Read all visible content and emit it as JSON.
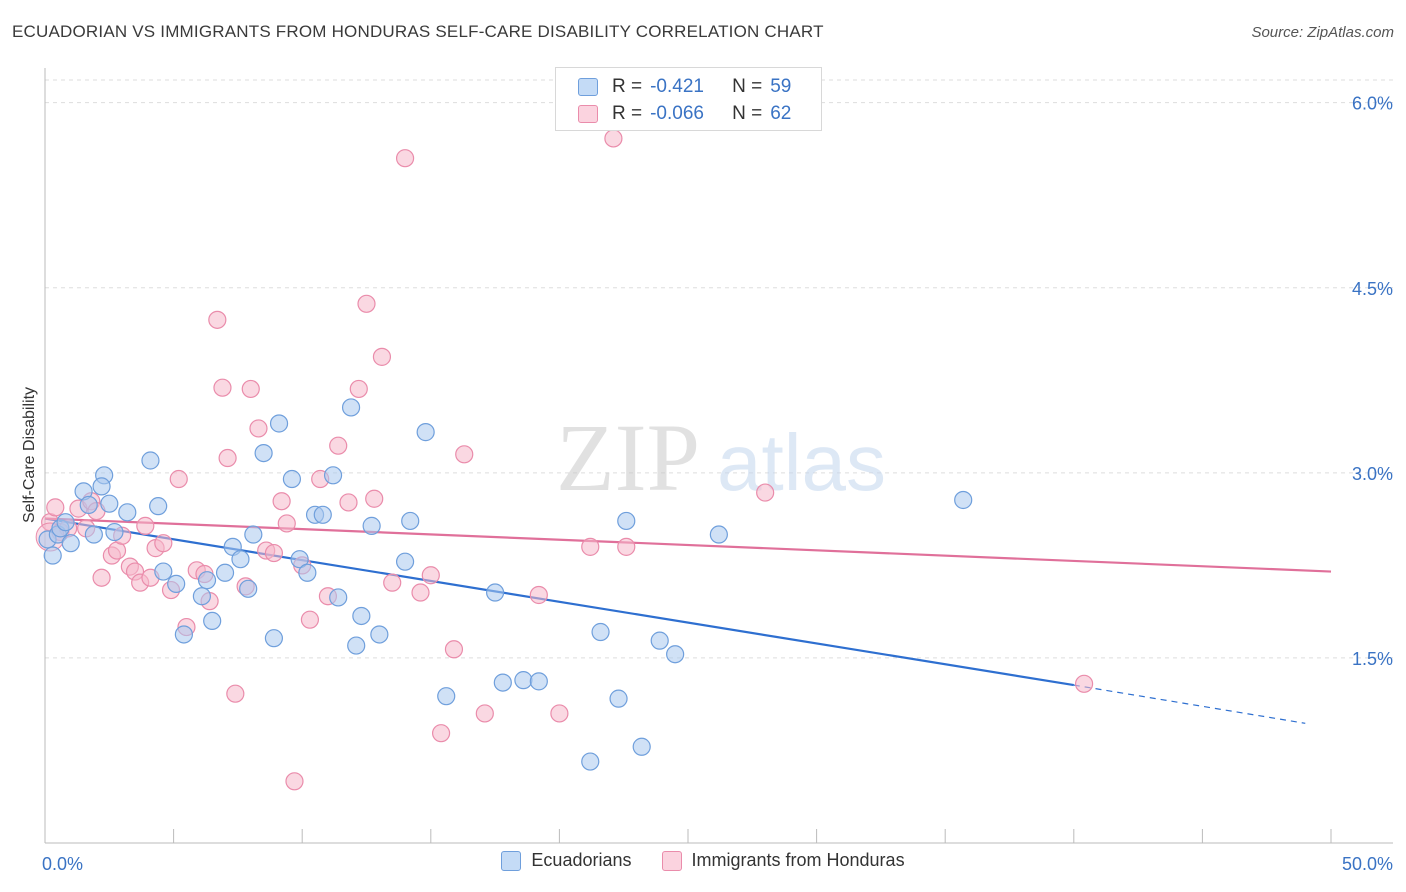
{
  "header": {
    "title": "ECUADORIAN VS IMMIGRANTS FROM HONDURAS SELF-CARE DISABILITY CORRELATION CHART",
    "source": "Source: ZipAtlas.com"
  },
  "watermark": {
    "zip": "ZIP",
    "atlas": "atlas"
  },
  "legend_top": {
    "rows": [
      {
        "r_label": "R =",
        "r_value": "-0.421",
        "n_label": "N =",
        "n_value": "59",
        "color": "#a9c8ef"
      },
      {
        "r_label": "R =",
        "r_value": "-0.066",
        "n_label": "N =",
        "n_value": "62",
        "color": "#f6b8cb"
      }
    ]
  },
  "legend_bottom": {
    "items": [
      {
        "label": "Ecuadorians",
        "color": "#a9c8ef"
      },
      {
        "label": "Immigrants from Honduras",
        "color": "#f6b8cb"
      }
    ]
  },
  "colors": {
    "blue_fill": "#a9c8ef",
    "blue_stroke": "#6f9fdc",
    "blue_line": "#2e6fd0",
    "pink_fill": "#f6b8cb",
    "pink_stroke": "#ea8cab",
    "pink_line": "#e0709a",
    "grid": "#dddddd",
    "axis_label": "#3a73c4"
  },
  "chart_data": {
    "type": "scatter",
    "title": "ECUADORIAN VS IMMIGRANTS FROM HONDURAS SELF-CARE DISABILITY CORRELATION CHART",
    "xlabel": "",
    "ylabel": "Self-Care Disability",
    "xlim": [
      0,
      50
    ],
    "ylim": [
      0,
      6.2
    ],
    "x_tick_labels": [
      "0.0%",
      "50.0%"
    ],
    "y_ticks": [
      1.5,
      3.0,
      4.5,
      6.0
    ],
    "y_tick_labels": [
      "1.5%",
      "3.0%",
      "4.5%",
      "6.0%"
    ],
    "grid": "horizontal dashed",
    "series": [
      {
        "name": "Ecuadorians",
        "r": -0.421,
        "n": 59,
        "trend": {
          "x0": 0.0,
          "y0": 2.63,
          "x1": 40.0,
          "y1": 1.28,
          "dashed_to_x": 49.0,
          "dashed_to_y": 0.97
        },
        "points": [
          [
            0.1,
            2.46
          ],
          [
            0.3,
            2.33
          ],
          [
            0.5,
            2.5
          ],
          [
            0.6,
            2.55
          ],
          [
            0.8,
            2.6
          ],
          [
            1.0,
            2.43
          ],
          [
            1.5,
            2.85
          ],
          [
            1.7,
            2.74
          ],
          [
            1.9,
            2.5
          ],
          [
            2.3,
            2.98
          ],
          [
            2.2,
            2.89
          ],
          [
            2.5,
            2.75
          ],
          [
            3.2,
            2.68
          ],
          [
            2.7,
            2.52
          ],
          [
            4.1,
            3.1
          ],
          [
            4.4,
            2.73
          ],
          [
            4.6,
            2.2
          ],
          [
            5.1,
            2.1
          ],
          [
            5.4,
            1.69
          ],
          [
            6.1,
            2.0
          ],
          [
            6.3,
            2.13
          ],
          [
            6.5,
            1.8
          ],
          [
            7.0,
            2.19
          ],
          [
            7.3,
            2.4
          ],
          [
            7.6,
            2.3
          ],
          [
            7.9,
            2.06
          ],
          [
            8.1,
            2.5
          ],
          [
            8.5,
            3.16
          ],
          [
            8.9,
            1.66
          ],
          [
            9.1,
            3.4
          ],
          [
            9.6,
            2.95
          ],
          [
            9.9,
            2.3
          ],
          [
            10.2,
            2.19
          ],
          [
            10.5,
            2.66
          ],
          [
            10.8,
            2.66
          ],
          [
            11.2,
            2.98
          ],
          [
            11.4,
            1.99
          ],
          [
            11.9,
            3.53
          ],
          [
            12.1,
            1.6
          ],
          [
            12.3,
            1.84
          ],
          [
            12.7,
            2.57
          ],
          [
            13.0,
            1.69
          ],
          [
            14.0,
            2.28
          ],
          [
            14.2,
            2.61
          ],
          [
            14.8,
            3.33
          ],
          [
            15.6,
            1.19
          ],
          [
            17.5,
            2.03
          ],
          [
            17.8,
            1.3
          ],
          [
            18.6,
            1.32
          ],
          [
            19.2,
            1.31
          ],
          [
            21.2,
            0.66
          ],
          [
            21.6,
            1.71
          ],
          [
            22.3,
            1.17
          ],
          [
            22.6,
            2.61
          ],
          [
            23.2,
            0.78
          ],
          [
            23.9,
            1.64
          ],
          [
            24.5,
            1.53
          ],
          [
            26.2,
            2.5
          ],
          [
            35.7,
            2.78
          ]
        ]
      },
      {
        "name": "Immigrants from Honduras",
        "r": -0.066,
        "n": 62,
        "trend": {
          "x0": 0.0,
          "y0": 2.63,
          "x1": 50.0,
          "y1": 2.2
        },
        "points": [
          [
            0.2,
            2.6
          ],
          [
            0.4,
            2.72
          ],
          [
            0.6,
            2.52
          ],
          [
            0.9,
            2.55
          ],
          [
            1.3,
            2.71
          ],
          [
            1.6,
            2.55
          ],
          [
            1.8,
            2.77
          ],
          [
            2.0,
            2.69
          ],
          [
            2.2,
            2.15
          ],
          [
            2.6,
            2.33
          ],
          [
            2.8,
            2.37
          ],
          [
            3.0,
            2.49
          ],
          [
            3.3,
            2.24
          ],
          [
            3.5,
            2.2
          ],
          [
            3.7,
            2.11
          ],
          [
            3.9,
            2.57
          ],
          [
            4.1,
            2.15
          ],
          [
            4.3,
            2.39
          ],
          [
            4.6,
            2.43
          ],
          [
            4.9,
            2.05
          ],
          [
            5.2,
            2.95
          ],
          [
            5.5,
            1.75
          ],
          [
            5.9,
            2.21
          ],
          [
            6.2,
            2.18
          ],
          [
            6.4,
            1.96
          ],
          [
            6.7,
            4.24
          ],
          [
            6.9,
            3.69
          ],
          [
            7.1,
            3.12
          ],
          [
            7.4,
            1.21
          ],
          [
            7.8,
            2.08
          ],
          [
            8.0,
            3.68
          ],
          [
            8.3,
            3.36
          ],
          [
            8.6,
            2.37
          ],
          [
            8.9,
            2.35
          ],
          [
            9.2,
            2.77
          ],
          [
            9.4,
            2.59
          ],
          [
            9.7,
            0.5
          ],
          [
            10.0,
            2.25
          ],
          [
            10.3,
            1.81
          ],
          [
            10.7,
            2.95
          ],
          [
            11.0,
            2.0
          ],
          [
            11.4,
            3.22
          ],
          [
            11.8,
            2.76
          ],
          [
            12.2,
            3.68
          ],
          [
            12.5,
            4.37
          ],
          [
            12.8,
            2.79
          ],
          [
            13.1,
            3.94
          ],
          [
            13.5,
            2.11
          ],
          [
            14.0,
            5.55
          ],
          [
            14.6,
            2.03
          ],
          [
            15.0,
            2.17
          ],
          [
            15.4,
            0.89
          ],
          [
            15.9,
            1.57
          ],
          [
            16.3,
            3.15
          ],
          [
            17.1,
            1.05
          ],
          [
            19.2,
            2.01
          ],
          [
            20.0,
            1.05
          ],
          [
            21.2,
            2.4
          ],
          [
            22.1,
            5.71
          ],
          [
            22.6,
            2.4
          ],
          [
            28.0,
            2.84
          ],
          [
            40.4,
            1.29
          ]
        ]
      }
    ]
  }
}
